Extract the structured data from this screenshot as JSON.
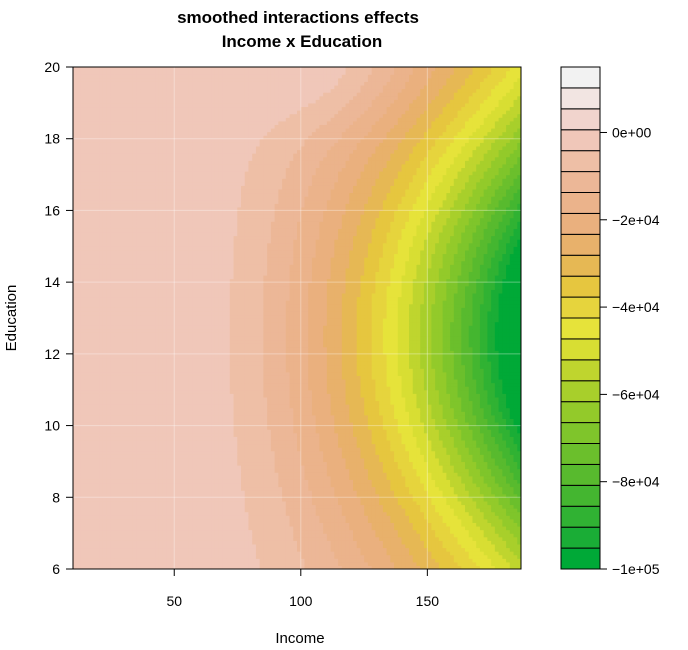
{
  "chart_data": {
    "type": "heatmap",
    "title": "smoothed interactions effects",
    "subtitle": "Income x Education",
    "xlabel": "Income",
    "ylabel": "Education",
    "xlim": [
      10,
      187
    ],
    "ylim": [
      6,
      20
    ],
    "x_ticks": [
      50,
      100,
      150
    ],
    "y_ticks": [
      6,
      8,
      10,
      12,
      14,
      16,
      18,
      20
    ],
    "x_tick_labels": [
      "50",
      "100",
      "150"
    ],
    "y_tick_labels": [
      "6",
      "8",
      "10",
      "12",
      "14",
      "16",
      "18",
      "20"
    ],
    "colorbar": {
      "range": [
        -100000,
        15000
      ],
      "levels": [
        -100000,
        -95000,
        -90000,
        -85000,
        -80000,
        -75000,
        -70000,
        -65000,
        -60000,
        -55000,
        -50000,
        -45000,
        -40000,
        -35000,
        -30000,
        -25000,
        -20000,
        -15000,
        -10000,
        -5000,
        0,
        5000,
        10000,
        15000
      ],
      "ticks": [
        0,
        -20000,
        -40000,
        -60000,
        -80000,
        -100000
      ],
      "tick_labels": [
        "0e+00",
        "−2e+04",
        "−4e+04",
        "−6e+04",
        "−8e+04",
        "−1e+05"
      ],
      "colors": [
        "#00a937",
        "#1aad36",
        "#30b233",
        "#44b630",
        "#58ba2e",
        "#6bbf2c",
        "#7fc52b",
        "#93ca2a",
        "#a8cf2b",
        "#bfd52e",
        "#d8de33",
        "#e6e33a",
        "#e6d43d",
        "#e6c63f",
        "#e6b854",
        "#e8b16b",
        "#eab07e",
        "#ebb38b",
        "#ecb797",
        "#eebfa6",
        "#f0c7b9",
        "#f1d4cd",
        "#f2e5e2",
        "#f2f2f2"
      ]
    },
    "grid": true,
    "legend": "right"
  }
}
